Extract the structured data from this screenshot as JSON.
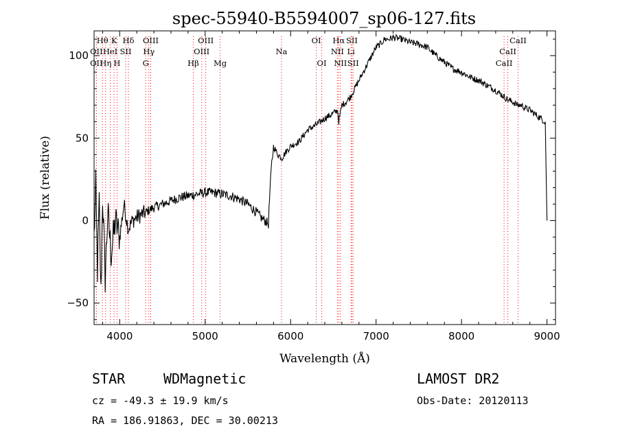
{
  "chart_data": {
    "type": "line",
    "title": "spec-55940-B5594007_sp06-127.fits",
    "xlabel": "Wavelength (Å)",
    "ylabel": "Flux (relative)",
    "xlim": [
      3700,
      9100
    ],
    "ylim": [
      -63,
      115
    ],
    "xticks": [
      4000,
      5000,
      6000,
      7000,
      8000,
      9000
    ],
    "yticks": [
      -50,
      0,
      50,
      100
    ],
    "grid": false,
    "series": [
      {
        "x": [
          3700,
          3720,
          3740,
          3760,
          3780,
          3800,
          3830,
          3860,
          3900,
          3950,
          4000,
          4050,
          4100,
          4150,
          4200,
          4300,
          4400,
          4500,
          4600,
          4700,
          4800,
          4900,
          5000,
          5100,
          5200,
          5300,
          5400,
          5500,
          5600,
          5650,
          5700,
          5740,
          5760,
          5780,
          5800,
          5850,
          5900,
          5950,
          6000,
          6100,
          6200,
          6300,
          6400,
          6500,
          6550,
          6563,
          6600,
          6650,
          6700,
          6750,
          6800,
          6850,
          6900,
          6950,
          7000,
          7050,
          7100,
          7150,
          7200,
          7300,
          7400,
          7500,
          7600,
          7700,
          7800,
          7900,
          8000,
          8100,
          8200,
          8300,
          8400,
          8500,
          8550,
          8600,
          8650,
          8700,
          8750,
          8800,
          8850,
          8900,
          8950,
          8980,
          9000
        ],
        "y": [
          -10,
          20,
          -30,
          10,
          -45,
          15,
          -35,
          5,
          -20,
          0,
          -10,
          10,
          -5,
          0,
          2,
          5,
          8,
          10,
          12,
          14,
          15,
          16,
          17,
          17,
          16,
          15,
          13,
          10,
          5,
          2,
          0,
          -2,
          20,
          35,
          45,
          40,
          38,
          42,
          45,
          48,
          55,
          58,
          62,
          65,
          67,
          60,
          70,
          72,
          75,
          80,
          85,
          90,
          95,
          100,
          105,
          107,
          110,
          110,
          111,
          110,
          108,
          107,
          105,
          100,
          96,
          92,
          90,
          87,
          85,
          82,
          79,
          75,
          73,
          72,
          70,
          70,
          68,
          67,
          65,
          63,
          61,
          60,
          0
        ]
      }
    ],
    "line_markers": [
      {
        "label": "Hθ",
        "x": 3798,
        "row": 0
      },
      {
        "label": "K",
        "x": 3934,
        "row": 0
      },
      {
        "label": "Hδ",
        "x": 4102,
        "row": 0
      },
      {
        "label": "OIII",
        "x": 4363,
        "row": 0
      },
      {
        "label": "OIII",
        "x": 5007,
        "row": 0
      },
      {
        "label": "OI",
        "x": 6300,
        "row": 0
      },
      {
        "label": "Hα",
        "x": 6563,
        "row": 0
      },
      {
        "label": "SII",
        "x": 6717,
        "row": 0
      },
      {
        "label": "CaII",
        "x": 8662,
        "row": 0
      },
      {
        "label": "OII",
        "x": 3727,
        "row": 1
      },
      {
        "label": "HeI",
        "x": 3889,
        "row": 1
      },
      {
        "label": "SII",
        "x": 4070,
        "row": 1
      },
      {
        "label": "Hγ",
        "x": 4341,
        "row": 1
      },
      {
        "label": "OIII",
        "x": 4959,
        "row": 1
      },
      {
        "label": "Na",
        "x": 5893,
        "row": 1
      },
      {
        "label": "NII",
        "x": 6548,
        "row": 1
      },
      {
        "label": "Li",
        "x": 6707,
        "row": 1
      },
      {
        "label": "CaII",
        "x": 8542,
        "row": 1
      },
      {
        "label": "OII",
        "x": 3727,
        "row": 2
      },
      {
        "label": "Hη",
        "x": 3835,
        "row": 2
      },
      {
        "label": "H",
        "x": 3968,
        "row": 2
      },
      {
        "label": "G",
        "x": 4304,
        "row": 2
      },
      {
        "label": "Hβ",
        "x": 4861,
        "row": 2
      },
      {
        "label": "Mg",
        "x": 5175,
        "row": 2
      },
      {
        "label": "OI",
        "x": 6364,
        "row": 2
      },
      {
        "label": "NII",
        "x": 6583,
        "row": 2
      },
      {
        "label": "SII",
        "x": 6731,
        "row": 2
      },
      {
        "label": "CaII",
        "x": 8498,
        "row": 2
      }
    ],
    "line_color": "#ff0000"
  },
  "footer": {
    "class": "STAR",
    "subclass": "WDMagnetic",
    "survey": "LAMOST DR2",
    "cz": "cz = -49.3 ± 19.9 km/s",
    "obs_date": "Obs-Date: 20120113",
    "coords": "RA = 186.91863, DEC =  30.00213"
  }
}
